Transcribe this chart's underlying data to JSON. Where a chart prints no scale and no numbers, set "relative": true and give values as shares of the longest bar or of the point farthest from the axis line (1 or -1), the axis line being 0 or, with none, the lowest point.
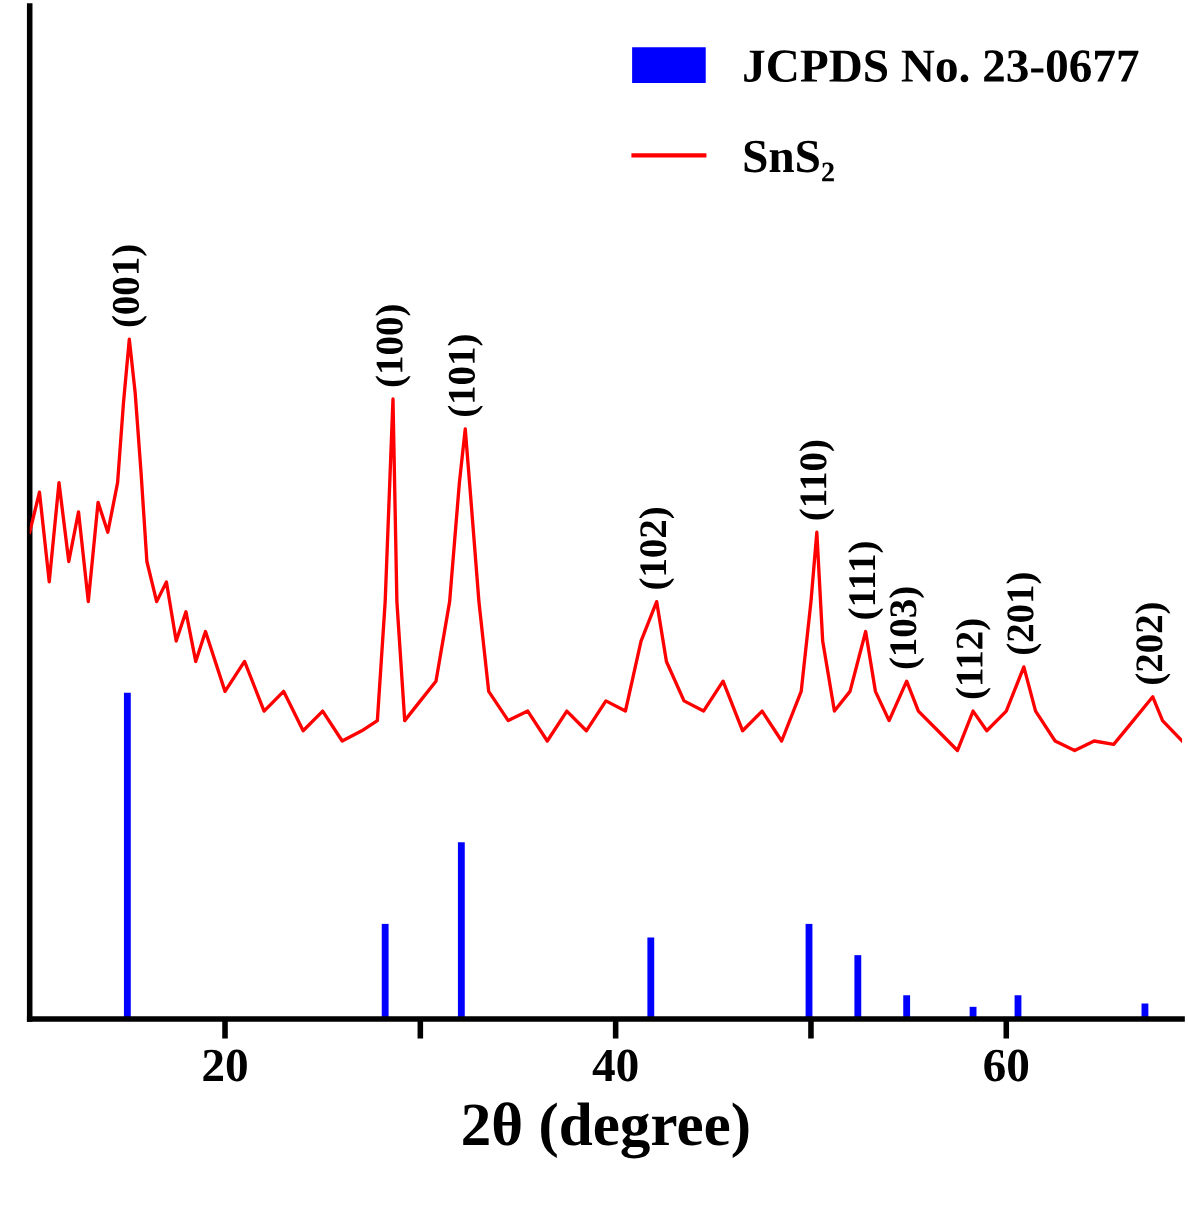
{
  "chart_data": {
    "type": "line",
    "relative": true,
    "xlabel": "2θ (degree)",
    "xlim": [
      10,
      69
    ],
    "xticks": [
      20,
      {
        "value": 30,
        "label": null
      },
      40,
      {
        "value": 50,
        "label": null
      },
      60
    ],
    "legend": "top right",
    "tick_labels": "x",
    "series": [
      {
        "name": "JCPDS No. 23-0677",
        "type": "bar",
        "color": "#0000ff",
        "x": [
          15.0,
          28.2,
          32.1,
          41.8,
          49.9,
          52.4,
          54.9,
          58.3,
          60.6,
          67.1
        ],
        "values": [
          0.48,
          0.14,
          0.26,
          0.12,
          0.14,
          0.094,
          0.035,
          0.018,
          0.035,
          0.023
        ]
      },
      {
        "name": "SnS₂",
        "color": "#ff0000",
        "x": [
          10.0,
          10.5,
          11.0,
          11.5,
          12.0,
          12.5,
          13.0,
          13.5,
          14.0,
          14.5,
          14.8,
          15.1,
          15.4,
          15.7,
          16.0,
          16.5,
          17.0,
          17.5,
          18.0,
          18.5,
          19.0,
          20.0,
          21.0,
          22.0,
          23.0,
          24.0,
          25.0,
          26.0,
          27.0,
          27.8,
          28.2,
          28.6,
          28.8,
          29.2,
          30.0,
          30.8,
          31.5,
          32.0,
          32.3,
          32.6,
          33.0,
          33.5,
          34.5,
          35.5,
          36.5,
          37.5,
          38.5,
          39.5,
          40.5,
          41.3,
          42.1,
          42.6,
          43.5,
          44.5,
          45.5,
          46.5,
          47.5,
          48.5,
          49.5,
          50.0,
          50.3,
          50.6,
          51.2,
          52.0,
          52.8,
          53.3,
          54.0,
          54.9,
          55.5,
          56.5,
          57.5,
          58.3,
          59.0,
          60.0,
          60.9,
          61.5,
          62.5,
          63.5,
          64.5,
          65.5,
          66.5,
          67.5,
          68.0,
          69.0
        ],
        "values": [
          0.716,
          0.775,
          0.643,
          0.789,
          0.673,
          0.746,
          0.614,
          0.76,
          0.716,
          0.789,
          0.906,
          1,
          0.921,
          0.804,
          0.673,
          0.614,
          0.643,
          0.556,
          0.599,
          0.526,
          0.57,
          0.482,
          0.526,
          0.453,
          0.482,
          0.424,
          0.453,
          0.409,
          0.424,
          0.439,
          0.614,
          0.912,
          0.614,
          0.439,
          0.468,
          0.497,
          0.614,
          0.789,
          0.868,
          0.76,
          0.614,
          0.482,
          0.439,
          0.453,
          0.409,
          0.453,
          0.424,
          0.468,
          0.453,
          0.556,
          0.614,
          0.526,
          0.468,
          0.453,
          0.497,
          0.424,
          0.453,
          0.409,
          0.482,
          0.614,
          0.716,
          0.556,
          0.453,
          0.482,
          0.57,
          0.482,
          0.439,
          0.497,
          0.453,
          0.424,
          0.395,
          0.453,
          0.424,
          0.453,
          0.518,
          0.453,
          0.409,
          0.395,
          0.409,
          0.404,
          0.439,
          0.474,
          0.439,
          0.409
        ]
      }
    ],
    "annotations": [
      {
        "text": "(001)",
        "x": 15.1,
        "y": 1
      },
      {
        "text": "(100)",
        "x": 28.6,
        "y": 0.912
      },
      {
        "text": "(101)",
        "x": 32.3,
        "y": 0.868
      },
      {
        "text": "(102)",
        "x": 42.1,
        "y": 0.614
      },
      {
        "text": "(110)",
        "x": 50.3,
        "y": 0.716
      },
      {
        "text": "(111)",
        "x": 52.8,
        "y": 0.57
      },
      {
        "text": "(103)",
        "x": 54.9,
        "y": 0.497
      },
      {
        "text": "(112)",
        "x": 58.3,
        "y": 0.453
      },
      {
        "text": "(201)",
        "x": 60.9,
        "y": 0.518
      },
      {
        "text": "(202)",
        "x": 67.5,
        "y": 0.474
      }
    ]
  }
}
